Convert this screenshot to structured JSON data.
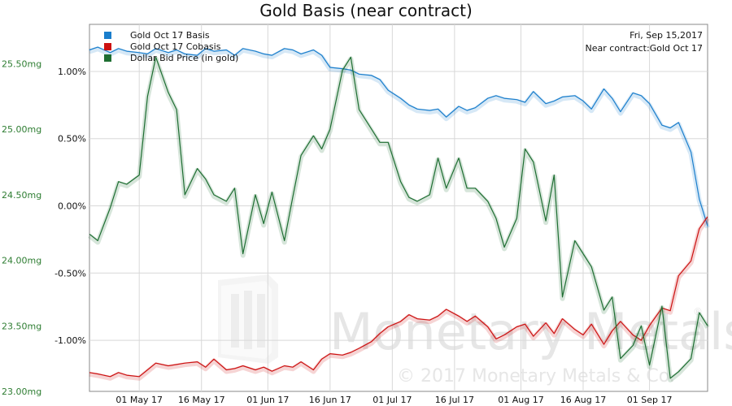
{
  "chart_data": {
    "type": "line",
    "title": "Gold Basis (near contract)",
    "info": [
      "Fri, Sep 15,2017",
      "Near contract:Gold Oct 17"
    ],
    "watermark": {
      "brand": "Monetary Metals",
      "copyright": "© 2017 Monetary Metals & Co.",
      "registered": "®"
    },
    "y_left": {
      "label": "",
      "range": [
        23.0,
        25.8
      ],
      "ticks": [
        23.0,
        23.5,
        24.0,
        24.5,
        25.0,
        25.5
      ],
      "tick_labels": [
        "23.00mg",
        "23.50mg",
        "24.00mg",
        "24.50mg",
        "25.00mg",
        "25.50mg"
      ]
    },
    "y_right": {
      "label": "",
      "range": [
        -1.38,
        1.35
      ],
      "ticks": [
        -1.0,
        -0.5,
        0.0,
        0.5,
        1.0
      ],
      "tick_labels": [
        "-1.00%",
        "-0.50%",
        "0.00%",
        "0.50%",
        "1.00%"
      ]
    },
    "x_axis": {
      "range": [
        "2017-04-19",
        "2017-09-15"
      ],
      "ticks": [
        "2017-05-01",
        "2017-05-16",
        "2017-06-01",
        "2017-06-16",
        "2017-07-01",
        "2017-07-16",
        "2017-08-01",
        "2017-08-16",
        "2017-09-01"
      ],
      "tick_labels": [
        "01 May 17",
        "16 May 17",
        "01 Jun 17",
        "16 Jun 17",
        "01 Jul 17",
        "16 Jul 17",
        "01 Aug 17",
        "16 Aug 17",
        "01 Sep 17"
      ]
    },
    "grid": true,
    "legend_position": "top-left",
    "series": [
      {
        "name": "Gold Oct 17 Basis",
        "color": "#1a7ecc",
        "axis": "right",
        "x": [
          "2017-04-19",
          "2017-04-21",
          "2017-04-24",
          "2017-04-26",
          "2017-04-28",
          "2017-05-01",
          "2017-05-03",
          "2017-05-05",
          "2017-05-08",
          "2017-05-10",
          "2017-05-12",
          "2017-05-15",
          "2017-05-17",
          "2017-05-19",
          "2017-05-22",
          "2017-05-24",
          "2017-05-26",
          "2017-05-29",
          "2017-05-31",
          "2017-06-02",
          "2017-06-05",
          "2017-06-07",
          "2017-06-09",
          "2017-06-12",
          "2017-06-14",
          "2017-06-16",
          "2017-06-19",
          "2017-06-21",
          "2017-06-23",
          "2017-06-26",
          "2017-06-28",
          "2017-06-30",
          "2017-07-03",
          "2017-07-05",
          "2017-07-07",
          "2017-07-10",
          "2017-07-12",
          "2017-07-14",
          "2017-07-17",
          "2017-07-19",
          "2017-07-21",
          "2017-07-24",
          "2017-07-26",
          "2017-07-28",
          "2017-07-31",
          "2017-08-02",
          "2017-08-04",
          "2017-08-07",
          "2017-08-09",
          "2017-08-11",
          "2017-08-14",
          "2017-08-16",
          "2017-08-18",
          "2017-08-21",
          "2017-08-23",
          "2017-08-25",
          "2017-08-28",
          "2017-08-30",
          "2017-09-01",
          "2017-09-04",
          "2017-09-06",
          "2017-09-08",
          "2017-09-11",
          "2017-09-13",
          "2017-09-15"
        ],
        "values": [
          1.16,
          1.18,
          1.14,
          1.17,
          1.15,
          1.14,
          1.13,
          1.17,
          1.14,
          1.16,
          1.13,
          1.12,
          1.17,
          1.15,
          1.16,
          1.12,
          1.17,
          1.15,
          1.13,
          1.12,
          1.17,
          1.16,
          1.13,
          1.16,
          1.12,
          1.03,
          1.02,
          1.01,
          0.98,
          0.97,
          0.94,
          0.86,
          0.8,
          0.75,
          0.72,
          0.71,
          0.72,
          0.66,
          0.74,
          0.71,
          0.73,
          0.8,
          0.82,
          0.8,
          0.79,
          0.77,
          0.85,
          0.76,
          0.78,
          0.81,
          0.82,
          0.78,
          0.72,
          0.87,
          0.8,
          0.7,
          0.84,
          0.82,
          0.76,
          0.6,
          0.58,
          0.62,
          0.4,
          0.05,
          -0.15
        ]
      },
      {
        "name": "Gold Oct 17 Cobasis",
        "color": "#cc1111",
        "axis": "right",
        "x": [
          "2017-04-19",
          "2017-04-21",
          "2017-04-24",
          "2017-04-26",
          "2017-04-28",
          "2017-05-01",
          "2017-05-03",
          "2017-05-05",
          "2017-05-08",
          "2017-05-10",
          "2017-05-12",
          "2017-05-15",
          "2017-05-17",
          "2017-05-19",
          "2017-05-22",
          "2017-05-24",
          "2017-05-26",
          "2017-05-29",
          "2017-05-31",
          "2017-06-02",
          "2017-06-05",
          "2017-06-07",
          "2017-06-09",
          "2017-06-12",
          "2017-06-14",
          "2017-06-16",
          "2017-06-19",
          "2017-06-21",
          "2017-06-23",
          "2017-06-26",
          "2017-06-28",
          "2017-06-30",
          "2017-07-03",
          "2017-07-05",
          "2017-07-07",
          "2017-07-10",
          "2017-07-12",
          "2017-07-14",
          "2017-07-17",
          "2017-07-19",
          "2017-07-21",
          "2017-07-24",
          "2017-07-26",
          "2017-07-28",
          "2017-07-31",
          "2017-08-02",
          "2017-08-04",
          "2017-08-07",
          "2017-08-09",
          "2017-08-11",
          "2017-08-14",
          "2017-08-16",
          "2017-08-18",
          "2017-08-21",
          "2017-08-23",
          "2017-08-25",
          "2017-08-28",
          "2017-08-30",
          "2017-09-01",
          "2017-09-04",
          "2017-09-06",
          "2017-09-08",
          "2017-09-11",
          "2017-09-13",
          "2017-09-15"
        ],
        "values": [
          -1.24,
          -1.25,
          -1.27,
          -1.24,
          -1.26,
          -1.27,
          -1.22,
          -1.17,
          -1.19,
          -1.18,
          -1.17,
          -1.16,
          -1.2,
          -1.14,
          -1.22,
          -1.21,
          -1.19,
          -1.22,
          -1.2,
          -1.23,
          -1.19,
          -1.2,
          -1.16,
          -1.22,
          -1.14,
          -1.1,
          -1.11,
          -1.09,
          -1.06,
          -1.01,
          -0.95,
          -0.9,
          -0.86,
          -0.81,
          -0.84,
          -0.85,
          -0.82,
          -0.77,
          -0.82,
          -0.86,
          -0.82,
          -0.9,
          -0.99,
          -0.96,
          -0.9,
          -0.88,
          -0.97,
          -0.87,
          -0.95,
          -0.84,
          -0.92,
          -0.96,
          -0.88,
          -1.03,
          -0.93,
          -0.86,
          -0.96,
          -1.0,
          -0.89,
          -0.76,
          -0.78,
          -0.52,
          -0.41,
          -0.17,
          -0.08
        ]
      },
      {
        "name": "Dollar Bid Price (in gold)",
        "color": "#1e6e32",
        "axis": "left",
        "x": [
          "2017-04-19",
          "2017-04-21",
          "2017-04-24",
          "2017-04-26",
          "2017-04-28",
          "2017-05-01",
          "2017-05-03",
          "2017-05-05",
          "2017-05-08",
          "2017-05-10",
          "2017-05-12",
          "2017-05-15",
          "2017-05-17",
          "2017-05-19",
          "2017-05-22",
          "2017-05-24",
          "2017-05-26",
          "2017-05-29",
          "2017-05-31",
          "2017-06-02",
          "2017-06-05",
          "2017-06-07",
          "2017-06-09",
          "2017-06-12",
          "2017-06-14",
          "2017-06-16",
          "2017-06-19",
          "2017-06-21",
          "2017-06-23",
          "2017-06-26",
          "2017-06-28",
          "2017-06-30",
          "2017-07-03",
          "2017-07-05",
          "2017-07-07",
          "2017-07-10",
          "2017-07-12",
          "2017-07-14",
          "2017-07-17",
          "2017-07-19",
          "2017-07-21",
          "2017-07-24",
          "2017-07-26",
          "2017-07-28",
          "2017-07-31",
          "2017-08-02",
          "2017-08-04",
          "2017-08-07",
          "2017-08-09",
          "2017-08-11",
          "2017-08-14",
          "2017-08-16",
          "2017-08-18",
          "2017-08-21",
          "2017-08-23",
          "2017-08-25",
          "2017-08-28",
          "2017-08-30",
          "2017-09-01",
          "2017-09-04",
          "2017-09-06",
          "2017-09-08",
          "2017-09-11",
          "2017-09-13",
          "2017-09-15"
        ],
        "values": [
          24.2,
          24.15,
          24.4,
          24.6,
          24.58,
          24.65,
          25.25,
          25.55,
          25.28,
          25.15,
          24.5,
          24.7,
          24.62,
          24.5,
          24.45,
          24.55,
          24.05,
          24.5,
          24.28,
          24.52,
          24.15,
          24.48,
          24.8,
          24.95,
          24.85,
          25.0,
          25.45,
          25.55,
          25.15,
          25.0,
          24.9,
          24.9,
          24.6,
          24.48,
          24.45,
          24.5,
          24.78,
          24.55,
          24.78,
          24.55,
          24.55,
          24.45,
          24.32,
          24.1,
          24.32,
          24.85,
          24.75,
          24.3,
          24.65,
          23.72,
          24.15,
          24.05,
          23.95,
          23.62,
          23.72,
          23.25,
          23.35,
          23.5,
          23.2,
          23.65,
          23.1,
          23.15,
          23.25,
          23.6,
          23.5
        ]
      }
    ]
  }
}
